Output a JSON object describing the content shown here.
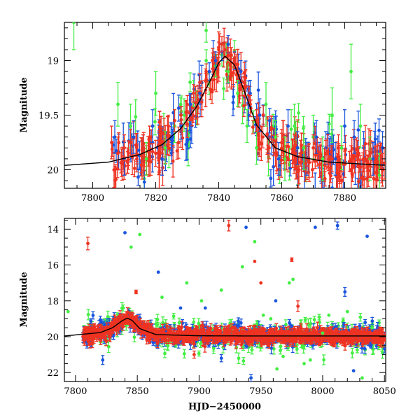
{
  "chart_data": [
    {
      "type": "scatter",
      "panel": "top",
      "xlabel": "",
      "ylabel": "Magnitude",
      "xlim": [
        7791,
        7893
      ],
      "ylim": [
        20.17,
        18.65
      ],
      "y_inverted": true,
      "x_ticks": [
        7800,
        7820,
        7840,
        7860,
        7880
      ],
      "y_ticks": [
        19,
        19.5,
        20
      ],
      "grid": false,
      "legend": "none",
      "colors": {
        "g": "#44ee44",
        "b": "#1a55dd",
        "r": "#ee3322",
        "model": "#000000"
      },
      "model_curve": {
        "description": "single-lens microlensing fit",
        "x": [
          7791,
          7805,
          7815,
          7822,
          7828,
          7833,
          7837,
          7840,
          7842,
          7845,
          7848,
          7852,
          7858,
          7865,
          7875,
          7893
        ],
        "y": [
          19.96,
          19.93,
          19.86,
          19.77,
          19.62,
          19.42,
          19.2,
          19.02,
          18.96,
          19.04,
          19.27,
          19.59,
          19.8,
          19.88,
          19.93,
          19.96
        ]
      },
      "series": [
        {
          "band": "green",
          "x": [
            7794,
            7808,
            7812,
            7817,
            7820,
            7823,
            7826,
            7829,
            7832,
            7836,
            7839,
            7841,
            7843,
            7846,
            7849,
            7852,
            7855,
            7858,
            7861,
            7864,
            7867,
            7870,
            7873,
            7876,
            7879,
            7882,
            7885,
            7888,
            7891
          ],
          "y": [
            18.65,
            19.4,
            19.6,
            19.9,
            19.3,
            19.8,
            19.6,
            19.5,
            19.3,
            19.0,
            19.05,
            18.95,
            19.1,
            19.3,
            19.6,
            19.8,
            19.4,
            19.7,
            19.9,
            19.6,
            19.8,
            19.7,
            19.9,
            19.5,
            19.8,
            19.1,
            19.6,
            19.9,
            20.05
          ],
          "err": [
            0.25,
            0.2,
            0.2,
            0.15,
            0.2,
            0.15,
            0.15,
            0.15,
            0.12,
            0.1,
            0.1,
            0.1,
            0.1,
            0.12,
            0.15,
            0.15,
            0.2,
            0.15,
            0.2,
            0.2,
            0.2,
            0.2,
            0.2,
            0.25,
            0.2,
            0.25,
            0.2,
            0.2,
            0.2
          ]
        },
        {
          "band": "blue",
          "x": [
            7807,
            7810,
            7813,
            7816,
            7819,
            7822,
            7825,
            7828,
            7831,
            7834,
            7837,
            7839,
            7841,
            7843,
            7845,
            7847,
            7850,
            7853,
            7856,
            7859,
            7862,
            7865,
            7868,
            7871,
            7874,
            7877,
            7880,
            7883,
            7886,
            7889,
            7892
          ],
          "y": [
            19.7,
            19.9,
            19.7,
            19.8,
            19.6,
            19.9,
            19.7,
            19.6,
            19.4,
            19.3,
            19.1,
            19.0,
            18.92,
            18.85,
            19.0,
            19.1,
            19.3,
            19.5,
            19.7,
            19.9,
            19.6,
            19.8,
            19.9,
            19.7,
            19.8,
            19.9,
            19.6,
            19.7,
            19.8,
            19.9,
            19.8
          ],
          "err": [
            0.15,
            0.15,
            0.15,
            0.12,
            0.15,
            0.15,
            0.12,
            0.12,
            0.1,
            0.1,
            0.08,
            0.08,
            0.08,
            0.08,
            0.08,
            0.1,
            0.12,
            0.15,
            0.15,
            0.15,
            0.15,
            0.15,
            0.15,
            0.15,
            0.15,
            0.15,
            0.15,
            0.15,
            0.15,
            0.15,
            0.15
          ]
        },
        {
          "band": "red",
          "x": [
            7806,
            7808,
            7810,
            7812,
            7814,
            7816,
            7818,
            7820,
            7822,
            7824,
            7826,
            7828,
            7830,
            7832,
            7834,
            7836,
            7838,
            7840,
            7841,
            7842,
            7843,
            7844,
            7845,
            7846,
            7848,
            7850,
            7852,
            7854,
            7856,
            7858,
            7860,
            7862,
            7864,
            7866,
            7868,
            7870,
            7872,
            7874,
            7876,
            7878,
            7880,
            7882,
            7884,
            7886,
            7888,
            7890,
            7892
          ],
          "y": [
            19.75,
            19.85,
            19.8,
            19.75,
            19.9,
            19.8,
            19.7,
            19.85,
            19.75,
            19.6,
            19.55,
            19.5,
            19.4,
            19.3,
            19.2,
            19.1,
            19.0,
            18.9,
            18.85,
            18.9,
            18.95,
            18.95,
            19.0,
            19.1,
            19.2,
            19.4,
            19.55,
            19.7,
            19.8,
            19.85,
            19.75,
            19.9,
            19.8,
            19.85,
            19.9,
            19.8,
            19.95,
            19.85,
            19.9,
            19.8,
            19.95,
            19.9,
            19.85,
            19.9,
            19.95,
            19.9,
            20.0
          ],
          "err": [
            0.15,
            0.15,
            0.12,
            0.12,
            0.12,
            0.12,
            0.1,
            0.12,
            0.1,
            0.1,
            0.1,
            0.08,
            0.08,
            0.08,
            0.08,
            0.07,
            0.07,
            0.07,
            0.07,
            0.07,
            0.07,
            0.07,
            0.07,
            0.07,
            0.08,
            0.08,
            0.1,
            0.1,
            0.1,
            0.12,
            0.12,
            0.12,
            0.12,
            0.12,
            0.12,
            0.12,
            0.12,
            0.12,
            0.12,
            0.12,
            0.12,
            0.12,
            0.12,
            0.12,
            0.12,
            0.12,
            0.15
          ]
        }
      ]
    },
    {
      "type": "scatter",
      "panel": "bottom",
      "xlabel": "HJD−2450000",
      "ylabel": "Magnitude",
      "xlim": [
        7791,
        8051
      ],
      "ylim": [
        22.5,
        13.4
      ],
      "y_inverted": true,
      "x_ticks": [
        7800,
        7850,
        7900,
        7950,
        8000,
        8050
      ],
      "y_ticks": [
        14,
        16,
        18,
        20,
        22
      ],
      "grid": false,
      "legend": "none",
      "colors": {
        "g": "#44ee44",
        "b": "#1a55dd",
        "r": "#ee3322",
        "model": "#000000"
      },
      "model_curve": {
        "description": "single-lens microlensing fit",
        "x": [
          7791,
          7820,
          7830,
          7838,
          7842,
          7846,
          7852,
          7865,
          7900,
          7950,
          8000,
          8051
        ],
        "y": [
          19.96,
          19.77,
          19.5,
          19.1,
          18.96,
          19.1,
          19.55,
          19.88,
          19.95,
          19.96,
          19.96,
          19.96
        ]
      },
      "outliers": {
        "green": {
          "x": [
            7794,
            7845,
            7852,
            7870,
            7890,
            7902,
            7918,
            7935,
            7945,
            7952,
            7958,
            7963,
            7968,
            7973,
            7976,
            7985,
            7990,
            8000,
            8005,
            8020,
            8032,
            8040
          ],
          "y": [
            18.6,
            15.0,
            14.3,
            17.8,
            17.0,
            18.0,
            17.4,
            16.1,
            14.7,
            18.8,
            19.0,
            21.8,
            21.1,
            17.0,
            16.8,
            21.5,
            21.3,
            19.8,
            18.8,
            18.6,
            22.3,
            19.5
          ]
        },
        "blue": {
          "x": [
            7822,
            7840,
            7867,
            7885,
            7905,
            7918,
            7938,
            7942,
            7962,
            7975,
            7994,
            8012,
            8018,
            8025,
            8030,
            8036
          ],
          "y": [
            21.3,
            14.2,
            16.4,
            18.4,
            18.4,
            21.2,
            13.9,
            22.3,
            18.0,
            19.4,
            13.9,
            13.8,
            17.5,
            21.9,
            19.4,
            14.4
          ],
          "err": [
            0.25,
            0,
            0,
            0,
            0,
            0.2,
            0,
            0.2,
            0,
            0,
            0,
            0.2,
            0.25,
            0,
            0,
            0
          ]
        },
        "red": {
          "x": [
            7810,
            7849,
            7896,
            7924,
            7945,
            7950,
            7975,
            7980
          ],
          "y": [
            14.8,
            17.5,
            21.0,
            13.8,
            15.8,
            17.0,
            15.7,
            18.3
          ],
          "err": [
            0.35,
            0.1,
            0.2,
            0.3,
            0,
            0,
            0.1,
            0.3
          ]
        }
      }
    }
  ]
}
